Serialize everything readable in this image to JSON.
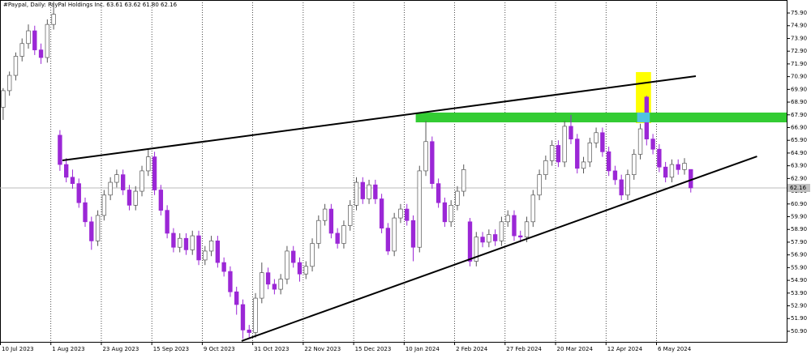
{
  "chart_data": {
    "type": "candlestick",
    "title": "#Paypal, Daily:  PayPal Holdings Inc.  63.61 63.62 61.80 62.16",
    "candles": [
      [
        68.5,
        70.0,
        67.5,
        69.8
      ],
      [
        69.8,
        71.3,
        69.4,
        71.0
      ],
      [
        71.0,
        72.8,
        70.6,
        72.5
      ],
      [
        72.5,
        73.9,
        72.1,
        73.5
      ],
      [
        73.5,
        75.0,
        73.1,
        74.5
      ],
      [
        74.5,
        74.9,
        72.6,
        73.0
      ],
      [
        73.0,
        73.5,
        71.9,
        72.4
      ],
      [
        72.4,
        75.4,
        72.0,
        75.0
      ],
      [
        75.0,
        76.8,
        74.6,
        75.8
      ],
      [
        66.3,
        66.7,
        63.5,
        64.0
      ],
      [
        64.0,
        64.5,
        62.6,
        63.0
      ],
      [
        63.0,
        63.6,
        62.1,
        62.5
      ],
      [
        62.5,
        62.9,
        60.6,
        61.0
      ],
      [
        61.0,
        61.4,
        59.1,
        59.5
      ],
      [
        59.5,
        59.9,
        57.3,
        58.0
      ],
      [
        58.0,
        60.4,
        57.6,
        60.0
      ],
      [
        60.0,
        62.0,
        59.6,
        61.6
      ],
      [
        61.6,
        63.0,
        61.2,
        62.6
      ],
      [
        62.6,
        63.6,
        62.2,
        63.2
      ],
      [
        63.2,
        63.6,
        61.6,
        62.0
      ],
      [
        62.0,
        62.4,
        60.4,
        60.8
      ],
      [
        60.8,
        62.3,
        60.4,
        61.9
      ],
      [
        61.9,
        63.9,
        61.5,
        63.5
      ],
      [
        63.5,
        65.2,
        63.1,
        64.6
      ],
      [
        64.6,
        65.0,
        61.6,
        62.0
      ],
      [
        62.0,
        62.4,
        60.0,
        60.4
      ],
      [
        60.4,
        60.8,
        58.2,
        58.6
      ],
      [
        58.6,
        59.0,
        57.1,
        57.5
      ],
      [
        57.5,
        58.6,
        57.1,
        58.2
      ],
      [
        58.2,
        58.6,
        56.9,
        57.3
      ],
      [
        57.3,
        58.8,
        56.9,
        58.4
      ],
      [
        58.4,
        58.8,
        56.1,
        56.5
      ],
      [
        56.5,
        57.6,
        56.1,
        57.2
      ],
      [
        57.2,
        58.4,
        56.8,
        58.0
      ],
      [
        58.0,
        58.4,
        55.9,
        56.3
      ],
      [
        56.3,
        56.7,
        55.2,
        55.6
      ],
      [
        55.6,
        56.0,
        53.6,
        54.0
      ],
      [
        54.0,
        54.4,
        52.2,
        53.0
      ],
      [
        53.0,
        53.4,
        50.3,
        51.0
      ],
      [
        51.0,
        51.4,
        50.4,
        50.8
      ],
      [
        50.8,
        53.9,
        50.4,
        53.5
      ],
      [
        53.5,
        56.3,
        53.1,
        55.5
      ],
      [
        55.5,
        55.9,
        54.2,
        54.6
      ],
      [
        54.6,
        55.0,
        53.8,
        54.2
      ],
      [
        54.2,
        55.4,
        53.8,
        55.0
      ],
      [
        55.0,
        57.6,
        54.6,
        57.2
      ],
      [
        57.2,
        57.6,
        55.9,
        56.3
      ],
      [
        56.3,
        56.7,
        54.8,
        55.4
      ],
      [
        55.4,
        56.4,
        55.0,
        56.0
      ],
      [
        56.0,
        58.2,
        55.6,
        57.8
      ],
      [
        57.8,
        60.0,
        57.4,
        59.6
      ],
      [
        59.6,
        60.9,
        59.2,
        60.5
      ],
      [
        60.5,
        60.9,
        58.2,
        58.6
      ],
      [
        58.6,
        59.0,
        57.4,
        57.8
      ],
      [
        57.8,
        59.6,
        57.4,
        59.2
      ],
      [
        59.2,
        61.2,
        58.8,
        60.8
      ],
      [
        60.8,
        63.0,
        60.4,
        62.6
      ],
      [
        62.6,
        63.0,
        60.9,
        61.3
      ],
      [
        61.3,
        62.8,
        60.9,
        62.4
      ],
      [
        62.4,
        62.8,
        60.9,
        61.3
      ],
      [
        61.3,
        61.7,
        58.6,
        59.0
      ],
      [
        59.0,
        59.4,
        56.9,
        57.2
      ],
      [
        57.2,
        60.2,
        56.8,
        59.8
      ],
      [
        59.8,
        60.9,
        59.4,
        60.5
      ],
      [
        60.5,
        60.9,
        59.2,
        59.6
      ],
      [
        59.6,
        60.0,
        56.4,
        57.5
      ],
      [
        57.5,
        63.9,
        57.1,
        63.5
      ],
      [
        63.5,
        67.4,
        63.1,
        65.8
      ],
      [
        65.8,
        66.2,
        62.1,
        62.5
      ],
      [
        62.5,
        62.9,
        60.6,
        61.0
      ],
      [
        61.0,
        61.4,
        59.1,
        59.5
      ],
      [
        59.5,
        61.2,
        59.1,
        60.8
      ],
      [
        60.8,
        62.3,
        60.4,
        61.9
      ],
      [
        61.9,
        64.0,
        61.5,
        63.6
      ],
      [
        59.5,
        59.8,
        56.0,
        56.4
      ],
      [
        56.4,
        58.7,
        56.0,
        58.3
      ],
      [
        58.3,
        58.7,
        57.5,
        57.9
      ],
      [
        57.9,
        58.9,
        57.5,
        58.5
      ],
      [
        58.5,
        58.9,
        57.6,
        58.0
      ],
      [
        58.0,
        59.9,
        57.6,
        59.5
      ],
      [
        59.5,
        60.4,
        59.1,
        60.0
      ],
      [
        60.0,
        60.4,
        58.0,
        58.4
      ],
      [
        58.4,
        58.8,
        57.9,
        58.3
      ],
      [
        58.3,
        59.9,
        57.9,
        59.5
      ],
      [
        59.5,
        62.0,
        59.1,
        61.6
      ],
      [
        61.6,
        63.6,
        61.2,
        63.2
      ],
      [
        63.2,
        64.7,
        62.8,
        64.3
      ],
      [
        64.3,
        65.9,
        63.9,
        65.5
      ],
      [
        65.5,
        65.9,
        63.8,
        64.2
      ],
      [
        64.2,
        67.4,
        63.8,
        67.0
      ],
      [
        67.0,
        67.9,
        65.6,
        66.0
      ],
      [
        66.0,
        66.4,
        63.3,
        63.7
      ],
      [
        63.7,
        64.6,
        63.3,
        64.2
      ],
      [
        64.2,
        66.1,
        63.8,
        65.7
      ],
      [
        65.7,
        66.9,
        65.3,
        66.5
      ],
      [
        66.5,
        66.9,
        64.6,
        65.0
      ],
      [
        65.0,
        65.4,
        63.1,
        63.5
      ],
      [
        63.5,
        63.9,
        62.4,
        62.8
      ],
      [
        62.8,
        63.2,
        61.2,
        61.6
      ],
      [
        61.6,
        63.6,
        61.2,
        63.2
      ],
      [
        63.2,
        65.2,
        62.8,
        64.8
      ],
      [
        64.8,
        67.2,
        64.4,
        66.8
      ],
      [
        69.3,
        69.4,
        65.5,
        66.0
      ],
      [
        66.0,
        66.4,
        64.8,
        65.2
      ],
      [
        65.2,
        65.6,
        63.4,
        63.8
      ],
      [
        63.8,
        64.2,
        62.6,
        63.0
      ],
      [
        63.0,
        64.4,
        62.6,
        64.0
      ],
      [
        64.0,
        64.4,
        63.2,
        63.6
      ],
      [
        63.6,
        64.5,
        63.2,
        64.1
      ],
      [
        63.61,
        63.62,
        61.8,
        62.16
      ]
    ],
    "up_color": "#ffffff",
    "down_color": "#9b27d6",
    "wick_color": "#555555",
    "xlim": [
      0,
      124.7
    ],
    "xticks": [
      {
        "value": 0,
        "label": "10 Jul 2023"
      },
      {
        "value": 8,
        "label": "1 Aug 2023"
      },
      {
        "value": 16,
        "label": "23 Aug 2023"
      },
      {
        "value": 24,
        "label": "15 Sep 2023"
      },
      {
        "value": 32,
        "label": "9 Oct 2023"
      },
      {
        "value": 40,
        "label": "31 Oct 2023"
      },
      {
        "value": 48,
        "label": "22 Nov 2023"
      },
      {
        "value": 56,
        "label": "15 Dec 2023"
      },
      {
        "value": 64,
        "label": "10 Jan 2024"
      },
      {
        "value": 72,
        "label": "2 Feb 2024"
      },
      {
        "value": 80,
        "label": "27 Feb 2024"
      },
      {
        "value": 88,
        "label": "20 Mar 2024"
      },
      {
        "value": 96,
        "label": "12 Apr 2024"
      },
      {
        "value": 104,
        "label": "6 May 2024"
      }
    ],
    "ylim": [
      50.07,
      76.92
    ],
    "yticks": [
      {
        "value": 75.9,
        "label": "75.90"
      },
      {
        "value": 74.9,
        "label": "74.90"
      },
      {
        "value": 73.9,
        "label": "73.90"
      },
      {
        "value": 72.9,
        "label": "72.90"
      },
      {
        "value": 71.9,
        "label": "71.90"
      },
      {
        "value": 70.9,
        "label": "70.90"
      },
      {
        "value": 69.9,
        "label": "69.90"
      },
      {
        "value": 68.9,
        "label": "68.90"
      },
      {
        "value": 67.9,
        "label": "67.90"
      },
      {
        "value": 66.9,
        "label": "66.90"
      },
      {
        "value": 65.9,
        "label": "65.90"
      },
      {
        "value": 64.9,
        "label": "64.90"
      },
      {
        "value": 63.9,
        "label": "63.90"
      },
      {
        "value": 62.9,
        "label": "62.90"
      },
      {
        "value": 61.9,
        "label": "61.90"
      },
      {
        "value": 60.9,
        "label": "60.90"
      },
      {
        "value": 59.9,
        "label": "59.90"
      },
      {
        "value": 58.9,
        "label": "58.90"
      },
      {
        "value": 57.9,
        "label": "57.90"
      },
      {
        "value": 56.9,
        "label": "56.90"
      },
      {
        "value": 55.9,
        "label": "55.90"
      },
      {
        "value": 54.9,
        "label": "54.90"
      },
      {
        "value": 53.9,
        "label": "53.90"
      },
      {
        "value": 52.9,
        "label": "52.90"
      },
      {
        "value": 51.9,
        "label": "51.90"
      },
      {
        "value": 50.9,
        "label": "50.90"
      }
    ],
    "current_price": 62.16,
    "trendlines": [
      {
        "x": [
          9.9,
          110.3
        ],
        "y": [
          64.32,
          70.94
        ]
      },
      {
        "x": [
          38.3,
          120.0
        ],
        "y": [
          50.14,
          64.64
        ]
      }
    ],
    "trendline_color": "#000000",
    "zones": [
      {
        "x": [
          100.8,
          103.2
        ],
        "y": [
          67.25,
          71.26
        ],
        "color": "#ffff00"
      },
      {
        "x": [
          65.9,
          124.7
        ],
        "y": [
          67.31,
          68.08
        ],
        "color": "#33cc33"
      },
      {
        "x": [
          101.0,
          103.0
        ],
        "y": [
          67.31,
          68.08
        ],
        "color": "#4fc3e0"
      }
    ]
  }
}
